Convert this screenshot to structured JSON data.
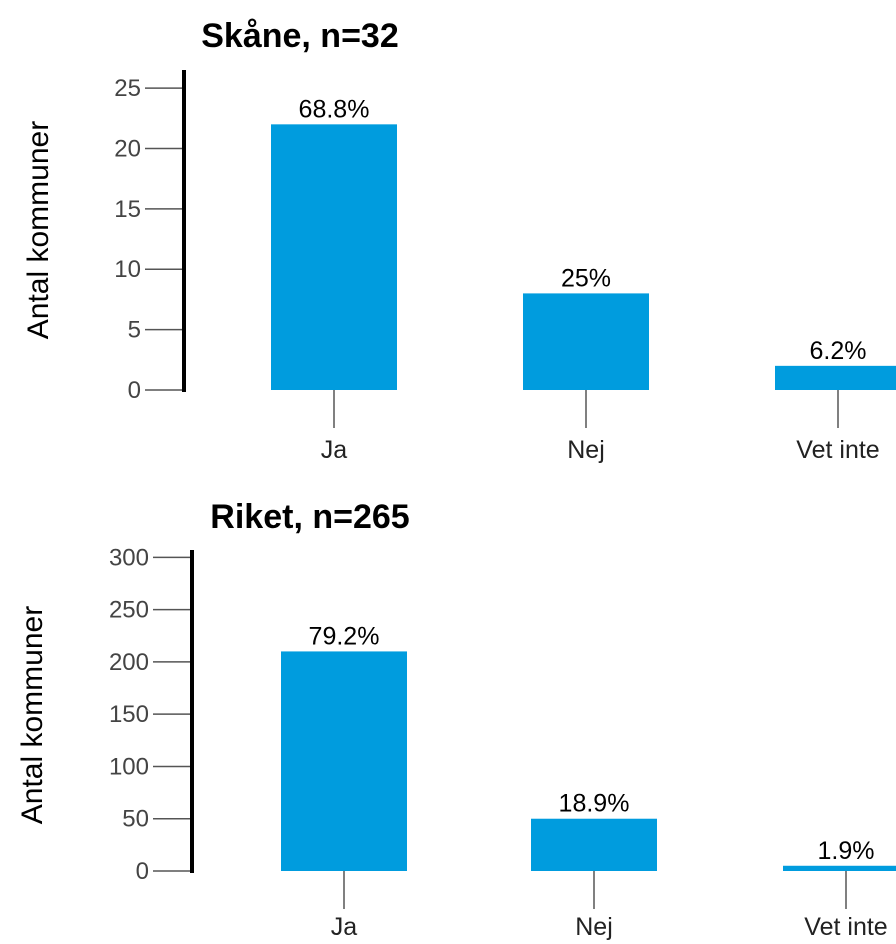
{
  "colors": {
    "bar": "#009cde",
    "axis": "#000000",
    "tick": "#555555"
  },
  "chart_data": [
    {
      "type": "bar",
      "title": "Skåne, n=32",
      "ylabel": "Antal kommuner",
      "xlabel": "",
      "categories": [
        "Ja",
        "Nej",
        "Vet inte"
      ],
      "values": [
        22,
        8,
        2
      ],
      "data_labels": [
        "68.8%",
        "25%",
        "6.2%"
      ],
      "yticks": [
        "0",
        "5",
        "10",
        "15",
        "20",
        "25"
      ],
      "ylim": [
        0,
        26.5
      ],
      "grid": false
    },
    {
      "type": "bar",
      "title": "Riket, n=265",
      "ylabel": "Antal kommuner",
      "xlabel": "",
      "categories": [
        "Ja",
        "Nej",
        "Vet inte"
      ],
      "values": [
        210,
        50,
        5
      ],
      "data_labels": [
        "79.2%",
        "18.9%",
        "1.9%"
      ],
      "yticks": [
        "0",
        "50",
        "100",
        "150",
        "200",
        "250",
        "300"
      ],
      "ylim": [
        0,
        307
      ],
      "grid": false
    }
  ]
}
